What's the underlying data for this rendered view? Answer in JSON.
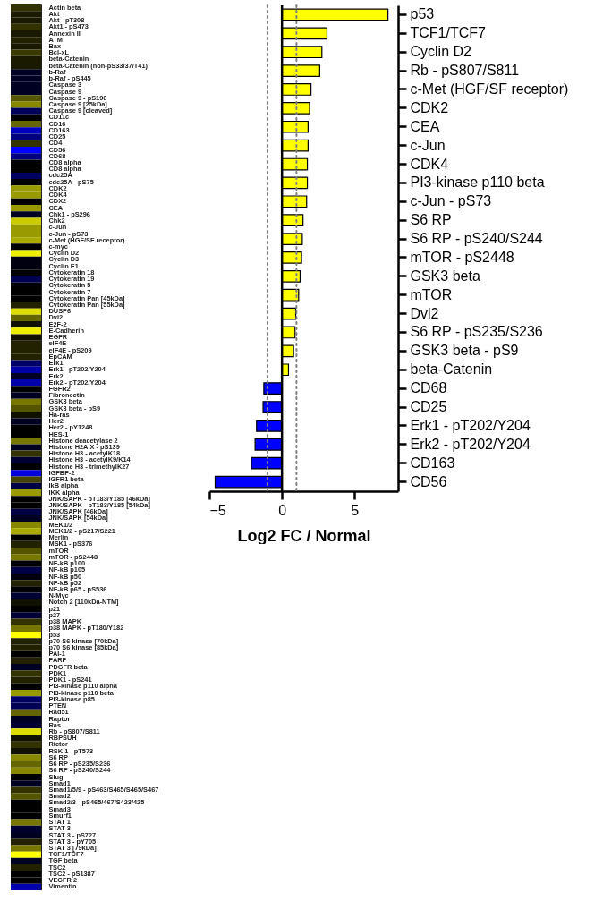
{
  "chart_data": [
    {
      "type": "other",
      "categories": [
        "Actin beta",
        "Akt",
        "Akt - pT308",
        "Akt1 - pS473",
        "Annexin II",
        "ATM",
        "Bax",
        "Bcl-xL",
        "beta-Catenin",
        "beta-Catenin (non-pS33/37/T41)",
        "b-Raf",
        "b-Raf - pS445",
        "Caspase 3",
        "Caspase 9",
        "Caspase 9 - pS196",
        "Caspase 9 [25kDa]",
        "Caspase 9 [cleaved]",
        "CD11c",
        "CD16",
        "CD163",
        "CD25",
        "CD4",
        "CD56",
        "CD68",
        "CD8 alpha",
        "CD8 alpha",
        "cdc25A",
        "cdc25A - pS75",
        "CDK2",
        "CDK4",
        "CDX2",
        "CEA",
        "Chk1 - pS296",
        "Chk2",
        "c-Jun",
        "c-Jun - pS73",
        "c-Met (HGF/SF receptor)",
        "c-myc",
        "Cyclin D2",
        "Cyclin D3",
        "Cyclin E1",
        "Cytokeratin 18",
        "Cytokeratin 19",
        "Cytokeratin 5",
        "Cytokeratin 7",
        "Cytokeratin Pan [45kDa]",
        "Cytokeratin Pan [55kDa]",
        "DUSP6",
        "Dvl2",
        "E2F-2",
        "E-Cadherin",
        "EGFR",
        "eIF4E",
        "eIF4E - pS209",
        "EpCAM",
        "Erk1",
        "Erk1 - pT202/Y204",
        "Erk2",
        "Erk2 - pT202/Y204",
        "FGFR2",
        "Fibronectin",
        "GSK3 beta",
        "GSK3 beta - pS9",
        "Ha-ras",
        "Her2",
        "Her2 - pY1248",
        "HES-1",
        "Histone deacetylase 2",
        "Histone H2A.X - pS139",
        "Histone H3 - acetylK18",
        "Histone H3 - acetylK9/K14",
        "Histone H3 - trimethylK27",
        "IGFBP-2",
        "IGFR1 beta",
        "IkB alpha",
        "IKK alpha",
        "JNK/SAPK - pT183/Y185 [46kDa]",
        "JNK/SAPK - pT183/Y185 [54kDa]",
        "JNK/SAPK [46kDa]",
        "JNK/SAPK [54kDa]",
        "MEK1/2",
        "MEK1/2 - pS217/S221",
        "Merlin",
        "MSK1 - pS376",
        "mTOR",
        "mTOR - pS2448",
        "NF-kB p100",
        "NF-kB p105",
        "NF-kB p50",
        "NF-kB p52",
        "NF-kB p65 - pS536",
        "N-Myc",
        "Notch 2 [110kDa-NTM]",
        "p21",
        "p27",
        "p38 MAPK",
        "p38 MAPK - pT180/Y182",
        "p53",
        "p70 S6 kinase [70kDa]",
        "p70 S6 kinase [85kDa]",
        "PAI-1",
        "PARP",
        "PDGFR beta",
        "PDK1",
        "PDK1 - pS241",
        "PI3-kinase p110 alpha",
        "PI3-kinase p110 beta",
        "PI3-kinase p85",
        "PTEN",
        "Rad51",
        "Raptor",
        "Ras",
        "Rb - pS807/S811",
        "RBPSUH",
        "Rictor",
        "RSK 1 - pT573",
        "S6 RP",
        "S6 RP - pS235/S236",
        "S6 RP - pS240/S244",
        "Slug",
        "Smad1",
        "Smad1/5/9 - pS463/S465/S465/S467",
        "Smad2",
        "Smad2/3 - pS465/467/S423/425",
        "Smad3",
        "Smurf1",
        "STAT 1",
        "STAT 3",
        "STAT 3 - pS727",
        "STAT 3 - pY705",
        "STAT 3 [79kDa]",
        "TCF1/TCF7",
        "TGF beta",
        "TSC2",
        "TSC2 - pS1387",
        "VEGFR 2",
        "Vimentin"
      ],
      "colors": [
        "#333300",
        "#1a1a00",
        "#1a1a00",
        "#333300",
        "#1a1a00",
        "#222200",
        "#1a1a00",
        "#3a3a00",
        "#1a1a00",
        "#1a1a00",
        "#000022",
        "#000022",
        "#000022",
        "#000022",
        "#555500",
        "#888800",
        "#00005a",
        "#000000",
        "#666600",
        "#0000c0",
        "#000080",
        "#333300",
        "#0000ff",
        "#000080",
        "#000000",
        "#000000",
        "#000060",
        "#000000",
        "#999900",
        "#999900",
        "#000000",
        "#999900",
        "#000022",
        "#cccc00",
        "#999900",
        "#999900",
        "#aaaa00",
        "#000000",
        "#eeee00",
        "#000011",
        "#000011",
        "#000000",
        "#000050",
        "#000000",
        "#000000",
        "#000000",
        "#222200",
        "#dddd00",
        "#666600",
        "#111100",
        "#eeee00",
        "#111100",
        "#222200",
        "#222200",
        "#222200",
        "#000066",
        "#0000aa",
        "#000022",
        "#0000aa",
        "#000000",
        "#000022",
        "#777700",
        "#555500",
        "#111100",
        "#000022",
        "#000000",
        "#000000",
        "#777700",
        "#000022",
        "#333300",
        "#000033",
        "#000000",
        "#0000dd",
        "#444400",
        "#000044",
        "#999900",
        "#000000",
        "#000000",
        "#000044",
        "#000022",
        "#888800",
        "#aaaa00",
        "#000000",
        "#222200",
        "#555500",
        "#777700",
        "#000000",
        "#000044",
        "#000011",
        "#222200",
        "#000000",
        "#000033",
        "#111100",
        "#000000",
        "#000033",
        "#333300",
        "#777700",
        "#ffff00",
        "#222200",
        "#222200",
        "#000000",
        "#222200",
        "#000022",
        "#333300",
        "#222200",
        "#000000",
        "#999900",
        "#000066",
        "#000055",
        "#666600",
        "#000022",
        "#000033",
        "#dddd00",
        "#111100",
        "#333300",
        "#111100",
        "#888800",
        "#666600",
        "#888800",
        "#000000",
        "#000022",
        "#333300",
        "#555500",
        "#000000",
        "#000000",
        "#000000",
        "#777700",
        "#000033",
        "#000022",
        "#222200",
        "#777700",
        "#ffff00",
        "#000022",
        "#222200",
        "#000000",
        "#000000",
        "#0000aa"
      ]
    },
    {
      "type": "bar",
      "orientation": "horizontal",
      "xlabel": "Log2 FC / Normal",
      "xlim": [
        -5,
        8
      ],
      "xticks": [
        -5,
        0,
        5
      ],
      "categories": [
        "p53",
        "TCF1/TCF7",
        "Cyclin D2",
        "Rb - pS807/S811",
        "c-Met (HGF/SF receptor)",
        "CDK2",
        "CEA",
        "c-Jun",
        "CDK4",
        "PI3-kinase p110 beta",
        "c-Jun - pS73",
        "S6 RP",
        "S6 RP - pS240/S244",
        "mTOR - pS2448",
        "GSK3 beta",
        "mTOR",
        "Dvl2",
        "S6 RP - pS235/S236",
        "GSK3 beta - pS9",
        "beta-Catenin",
        "CD68",
        "CD25",
        "Erk1 - pT202/Y204",
        "Erk2 - pT202/Y204",
        "CD163",
        "CD56"
      ],
      "values": [
        7.3,
        3.1,
        2.75,
        2.6,
        2.0,
        1.9,
        1.8,
        1.8,
        1.75,
        1.75,
        1.7,
        1.45,
        1.4,
        1.35,
        1.25,
        1.15,
        0.95,
        0.9,
        0.8,
        0.45,
        -1.25,
        -1.3,
        -1.75,
        -1.85,
        -2.1,
        -4.6
      ],
      "colors": [
        "#ffff00",
        "#ffff00",
        "#ffff00",
        "#ffff00",
        "#ffff00",
        "#ffff00",
        "#ffff00",
        "#ffff00",
        "#ffff00",
        "#ffff00",
        "#ffff00",
        "#ffff00",
        "#ffff00",
        "#ffff00",
        "#ffff00",
        "#ffff00",
        "#ffff00",
        "#ffff00",
        "#ffff00",
        "#ffff00",
        "#0000ff",
        "#0000ff",
        "#0000ff",
        "#0000ff",
        "#0000ff",
        "#0000ff"
      ],
      "ref_lines": [
        {
          "axis": "x",
          "value": -1,
          "line_style": "dotted",
          "color": "#808080"
        },
        {
          "axis": "x",
          "value": 1,
          "line_style": "dotted",
          "color": "#808080"
        },
        {
          "axis": "x",
          "value": 0,
          "line_style": "solid",
          "color": "#000000"
        }
      ]
    }
  ]
}
